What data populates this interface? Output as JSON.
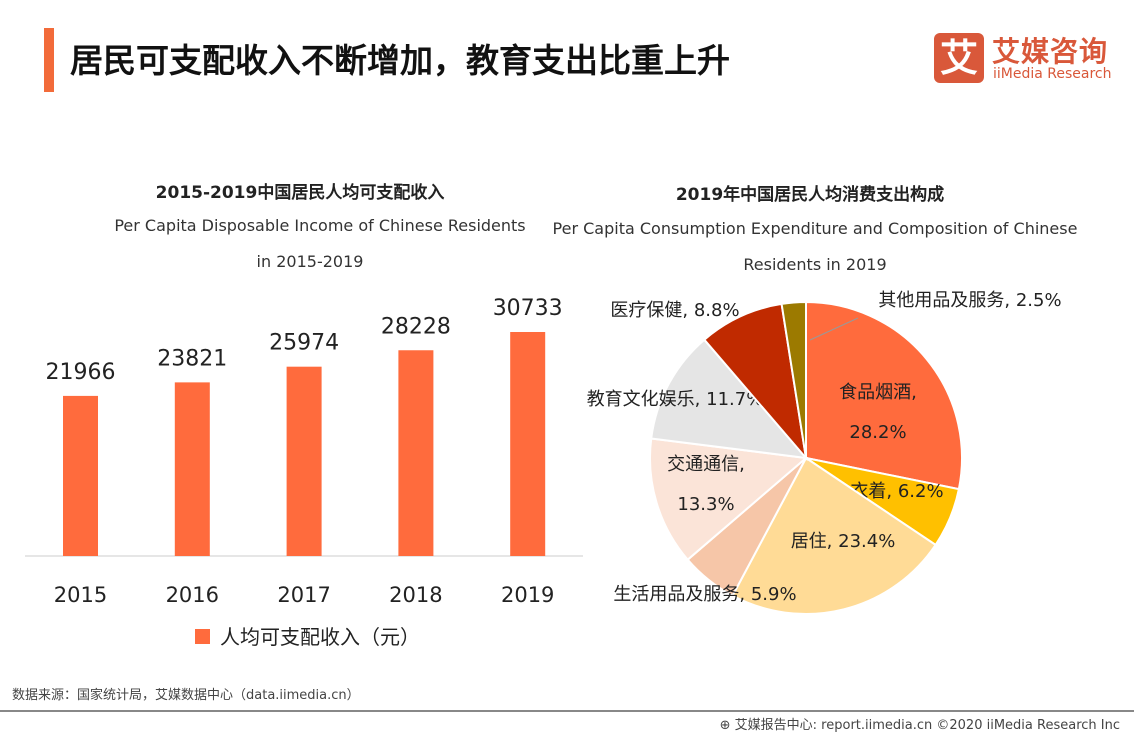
{
  "header": {
    "title": "居民可支配收入不断增加，教育支出比重上升",
    "logo_mark": "艾",
    "logo_cn": "艾媒咨询",
    "logo_en": "iiMedia Research"
  },
  "chart_data": [
    {
      "type": "bar",
      "title": "2015-2019中国居民人均可支配收入",
      "subtitle": "Per Capita Disposable Income of Chinese Residents in 2015-2019",
      "subtitle_lines": [
        "Per Capita Disposable Income of Chinese Residents",
        "in 2015-2019"
      ],
      "categories": [
        "2015",
        "2016",
        "2017",
        "2018",
        "2019"
      ],
      "values": [
        21966,
        23821,
        25974,
        28228,
        30733
      ],
      "series": [
        {
          "name": "人均可支配收入（元）",
          "values": [
            21966,
            23821,
            25974,
            28228,
            30733
          ]
        }
      ],
      "legend": "bottom",
      "color": "#FF6B3D",
      "ylim": [
        0,
        30733
      ]
    },
    {
      "type": "pie",
      "title": "2019年中国居民人均消费支出构成",
      "subtitle_lines": [
        "Per Capita Consumption Expenditure and Composition of Chinese",
        "Residents in 2019"
      ],
      "slices": [
        {
          "label": "食品烟酒",
          "value": 28.2,
          "color": "#FF6B3D",
          "text": [
            "食品烟酒,",
            "28.2%"
          ]
        },
        {
          "label": "衣着",
          "value": 6.2,
          "color": "#FFC000",
          "text": [
            "衣着, 6.2%"
          ]
        },
        {
          "label": "居住",
          "value": 23.4,
          "color": "#FFDB96",
          "text": [
            "居住, 23.4%"
          ]
        },
        {
          "label": "生活用品及服务",
          "value": 5.9,
          "color": "#F6C6A8",
          "text": [
            "生活用品及服务, 5.9%"
          ]
        },
        {
          "label": "交通通信",
          "value": 13.3,
          "color": "#FBE4D8",
          "text": [
            "交通通信,",
            "13.3%"
          ]
        },
        {
          "label": "教育文化娱乐",
          "value": 11.7,
          "color": "#E5E5E5",
          "text": [
            "教育文化娱乐, 11.7%"
          ]
        },
        {
          "label": "医疗保健",
          "value": 8.8,
          "color": "#C02A00",
          "text": [
            "医疗保健, 8.8%"
          ]
        },
        {
          "label": "其他用品及服务",
          "value": 2.5,
          "color": "#9C7A00",
          "text": [
            "其他用品及服务, 2.5%"
          ]
        }
      ]
    }
  ],
  "footer": {
    "source": "数据来源：国家统计局，艾媒数据中心（data.iimedia.cn）",
    "report": "艾媒报告中心: report.iimedia.cn   ©2020  iiMedia Research  Inc"
  }
}
